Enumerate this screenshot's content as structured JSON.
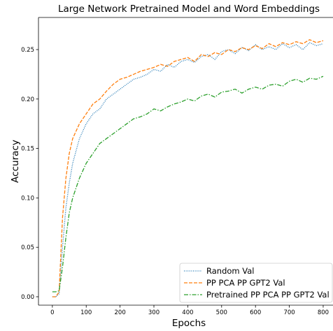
{
  "chart_data": {
    "type": "line",
    "title": "Large Network Pretrained Model and Word Embeddings",
    "xlabel": "Epochs",
    "ylabel": "Accuracy",
    "x": [
      0,
      10,
      20,
      30,
      40,
      50,
      60,
      80,
      100,
      120,
      140,
      160,
      180,
      200,
      220,
      240,
      260,
      280,
      300,
      320,
      340,
      360,
      380,
      400,
      420,
      440,
      460,
      480,
      500,
      520,
      540,
      560,
      580,
      600,
      620,
      640,
      660,
      680,
      700,
      720,
      740,
      760,
      780,
      800
    ],
    "series": [
      {
        "name": "Random Val",
        "color": "#1f77b4",
        "style": "dotted",
        "values": [
          0,
          0,
          0.003,
          0.05,
          0.09,
          0.115,
          0.135,
          0.16,
          0.175,
          0.185,
          0.19,
          0.2,
          0.205,
          0.21,
          0.215,
          0.22,
          0.222,
          0.225,
          0.23,
          0.228,
          0.235,
          0.232,
          0.238,
          0.24,
          0.237,
          0.243,
          0.245,
          0.24,
          0.248,
          0.25,
          0.246,
          0.252,
          0.249,
          0.255,
          0.25,
          0.253,
          0.25,
          0.256,
          0.252,
          0.255,
          0.25,
          0.257,
          0.254,
          0.256
        ]
      },
      {
        "name": "PP PCA PP GPT2 Val",
        "color": "#ff7f0e",
        "style": "dashed",
        "values": [
          0,
          0,
          0.005,
          0.08,
          0.12,
          0.145,
          0.16,
          0.175,
          0.185,
          0.195,
          0.2,
          0.208,
          0.215,
          0.22,
          0.222,
          0.225,
          0.228,
          0.23,
          0.232,
          0.235,
          0.233,
          0.238,
          0.24,
          0.242,
          0.238,
          0.245,
          0.243,
          0.247,
          0.245,
          0.25,
          0.248,
          0.252,
          0.25,
          0.254,
          0.251,
          0.256,
          0.253,
          0.257,
          0.255,
          0.258,
          0.256,
          0.26,
          0.257,
          0.259
        ]
      },
      {
        "name": "Pretrained PP PCA PP GPT2 Val",
        "color": "#2ca02c",
        "style": "dashdot",
        "values": [
          0.005,
          0.005,
          0.006,
          0.03,
          0.06,
          0.085,
          0.1,
          0.12,
          0.135,
          0.145,
          0.155,
          0.16,
          0.165,
          0.17,
          0.175,
          0.18,
          0.182,
          0.185,
          0.19,
          0.188,
          0.192,
          0.195,
          0.197,
          0.2,
          0.198,
          0.203,
          0.205,
          0.202,
          0.207,
          0.208,
          0.21,
          0.206,
          0.21,
          0.212,
          0.21,
          0.214,
          0.215,
          0.213,
          0.218,
          0.22,
          0.217,
          0.221,
          0.22,
          0.223
        ]
      }
    ],
    "xlim": [
      -41,
      829
    ],
    "ylim": [
      -0.0085,
      0.2825
    ],
    "xticks": [
      0,
      100,
      200,
      300,
      400,
      500,
      600,
      700,
      800
    ],
    "yticks": [
      {
        "value": 0,
        "label": "0.00"
      },
      {
        "value": 0.05,
        "label": "0.05"
      },
      {
        "value": 0.1,
        "label": "0.10"
      },
      {
        "value": 0.15,
        "label": "0.15"
      },
      {
        "value": 0.2,
        "label": "0.20"
      },
      {
        "value": 0.25,
        "label": "0.25"
      }
    ],
    "legend": "lower right",
    "grid": false
  }
}
